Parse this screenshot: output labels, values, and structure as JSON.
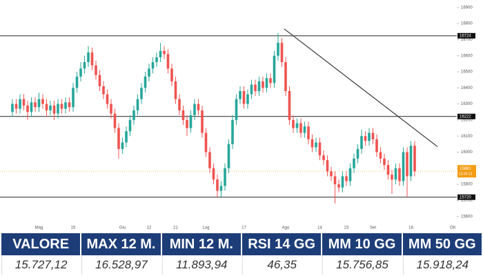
{
  "chart_data": {
    "type": "candlestick",
    "categories": [
      null,
      null,
      null,
      null,
      null,
      null,
      null,
      "Mag",
      null,
      null,
      null,
      null,
      null,
      null,
      null,
      null,
      "15",
      null,
      null,
      null,
      null,
      null,
      null,
      null,
      null,
      null,
      null,
      null,
      null,
      "Giu",
      null,
      null,
      null,
      null,
      null,
      null,
      "12",
      null,
      null,
      null,
      null,
      null,
      null,
      "21",
      null,
      null,
      null,
      null,
      null,
      null,
      null,
      "Lug",
      null,
      null,
      null,
      null,
      null,
      null,
      null,
      null,
      null,
      "17",
      null,
      null,
      null,
      null,
      null,
      null,
      null,
      null,
      null,
      null,
      "Ago",
      null,
      null,
      null,
      null,
      null,
      null,
      null,
      null,
      "14",
      null,
      null,
      null,
      null,
      null,
      null,
      "23",
      null,
      null,
      null,
      null,
      null,
      null,
      "Set",
      null,
      null,
      null,
      null,
      null,
      null,
      null,
      null,
      null,
      "18",
      null,
      null,
      null,
      null,
      null,
      null,
      null,
      null,
      null,
      null,
      "Ott",
      null
    ],
    "open": [
      16250,
      16300,
      16270,
      16330,
      16290,
      16250,
      16310,
      16280,
      16330,
      16300,
      16260,
      16290,
      16240,
      16300,
      16270,
      16310,
      16280,
      16400,
      16470,
      16520,
      16560,
      16620,
      16540,
      16480,
      16410,
      16360,
      16300,
      16240,
      16150,
      16020,
      16060,
      16130,
      16200,
      16260,
      16330,
      16400,
      16470,
      16520,
      16560,
      16590,
      16630,
      16610,
      16520,
      16440,
      16330,
      16260,
      16200,
      16150,
      16230,
      16300,
      16260,
      16120,
      16000,
      15900,
      15830,
      15760,
      15790,
      15900,
      16050,
      16200,
      16330,
      16380,
      16300,
      16360,
      16420,
      16380,
      16440,
      16400,
      16460,
      16430,
      16600,
      16680,
      16560,
      16380,
      16200,
      16150,
      16180,
      16120,
      16160,
      16080,
      16030,
      16060,
      15980,
      15950,
      15880,
      15850,
      15800,
      15780,
      15850,
      15820,
      15900,
      15960,
      16020,
      16100,
      16070,
      16120,
      16080,
      16000,
      15960,
      15920,
      15860,
      15830,
      15900,
      15820,
      16000,
      15850,
      16040,
      null,
      null,
      null,
      null,
      null,
      null,
      null,
      null,
      null,
      null,
      null
    ],
    "high": [
      16330,
      16330,
      16360,
      16360,
      16320,
      16340,
      16340,
      16370,
      16360,
      16330,
      16320,
      16320,
      16330,
      16330,
      16340,
      16340,
      16430,
      16500,
      16560,
      16600,
      16660,
      16650,
      16570,
      16510,
      16440,
      16390,
      16330,
      16270,
      16180,
      16090,
      16160,
      16230,
      16290,
      16360,
      16430,
      16500,
      16550,
      16590,
      16620,
      16680,
      16660,
      16640,
      16550,
      16470,
      16360,
      16290,
      16230,
      16260,
      16330,
      16330,
      16290,
      16150,
      16030,
      15930,
      15860,
      15820,
      15930,
      16080,
      16230,
      16360,
      16410,
      16410,
      16390,
      16450,
      16450,
      16470,
      16470,
      16490,
      16490,
      16630,
      16740,
      16710,
      16590,
      16410,
      16230,
      16210,
      16210,
      16190,
      16190,
      16110,
      16090,
      16090,
      16010,
      15980,
      15910,
      15880,
      15830,
      15880,
      15880,
      15930,
      15990,
      16050,
      16140,
      16130,
      16150,
      16150,
      16110,
      16030,
      15990,
      15950,
      15890,
      15930,
      15930,
      16030,
      16030,
      16070,
      16070,
      null,
      null,
      null,
      null,
      null,
      null,
      null,
      null,
      null,
      null,
      null
    ],
    "low": [
      16220,
      16240,
      16240,
      16260,
      16200,
      16220,
      16250,
      16250,
      16270,
      16220,
      16230,
      16200,
      16210,
      16240,
      16240,
      16250,
      16250,
      16370,
      16440,
      16490,
      16530,
      16510,
      16450,
      16380,
      16330,
      16270,
      16210,
      16120,
      15960,
      15990,
      16030,
      16100,
      16170,
      16230,
      16300,
      16370,
      16440,
      16490,
      16530,
      16560,
      16580,
      16490,
      16410,
      16300,
      16230,
      16170,
      16100,
      16120,
      16200,
      16230,
      16090,
      15970,
      15870,
      15800,
      15720,
      15720,
      15760,
      15870,
      16020,
      16170,
      16300,
      16270,
      16270,
      16330,
      16350,
      16350,
      16370,
      16370,
      16400,
      16400,
      16570,
      16530,
      16350,
      16170,
      16120,
      16120,
      16090,
      16090,
      16050,
      16000,
      16000,
      15950,
      15920,
      15850,
      15820,
      15680,
      15750,
      15750,
      15790,
      15790,
      15870,
      15930,
      15990,
      16040,
      16040,
      16050,
      15970,
      15930,
      15890,
      15830,
      15740,
      15800,
      15790,
      15790,
      15720,
      15820,
      15850,
      null,
      null,
      null,
      null,
      null,
      null,
      null,
      null,
      null,
      null,
      null
    ],
    "close": [
      16300,
      16270,
      16330,
      16290,
      16250,
      16310,
      16280,
      16330,
      16300,
      16260,
      16290,
      16240,
      16300,
      16270,
      16310,
      16280,
      16400,
      16470,
      16520,
      16560,
      16620,
      16540,
      16480,
      16410,
      16360,
      16300,
      16240,
      16150,
      16020,
      16060,
      16130,
      16200,
      16260,
      16330,
      16400,
      16470,
      16520,
      16560,
      16590,
      16630,
      16610,
      16520,
      16440,
      16330,
      16260,
      16200,
      16150,
      16230,
      16300,
      16260,
      16120,
      16000,
      15900,
      15830,
      15760,
      15790,
      15900,
      16050,
      16200,
      16330,
      16380,
      16300,
      16360,
      16420,
      16380,
      16440,
      16400,
      16460,
      16430,
      16600,
      16680,
      16560,
      16380,
      16200,
      16150,
      16180,
      16120,
      16160,
      16080,
      16030,
      16060,
      15980,
      15950,
      15880,
      15850,
      15800,
      15780,
      15850,
      15820,
      15900,
      15960,
      16020,
      16100,
      16070,
      16120,
      16080,
      16000,
      15960,
      15920,
      15860,
      15830,
      15900,
      15820,
      16000,
      15850,
      16040,
      15881,
      null,
      null,
      null,
      null,
      null,
      null,
      null,
      null,
      null,
      null,
      null
    ],
    "up_color": "#26a69a",
    "down_color": "#ef5350",
    "ylim": [
      15530,
      16925
    ],
    "yticks": [
      15600,
      15700,
      15800,
      15900,
      16000,
      16100,
      16200,
      16300,
      16400,
      16500,
      16600,
      16700,
      16800,
      16900
    ],
    "levels": [
      16724,
      16222,
      15720
    ],
    "trend_line": {
      "start": {
        "index": 71.6,
        "value": 16767
      },
      "end": {
        "index": 112,
        "value": 16034
      }
    },
    "last_price": 15881,
    "last_price_color": "#f39c12",
    "countdown": "13:34:13"
  },
  "table": {
    "headers": [
      "VALORE",
      "MAX 12 M.",
      "MIN 12 M.",
      "RSI 14 GG",
      "MM 10 GG",
      "MM 50 GG"
    ],
    "values": [
      "15.727,12",
      "16.528,97",
      "11.893,94",
      "46,35",
      "15.756,85",
      "15.918,24"
    ]
  }
}
